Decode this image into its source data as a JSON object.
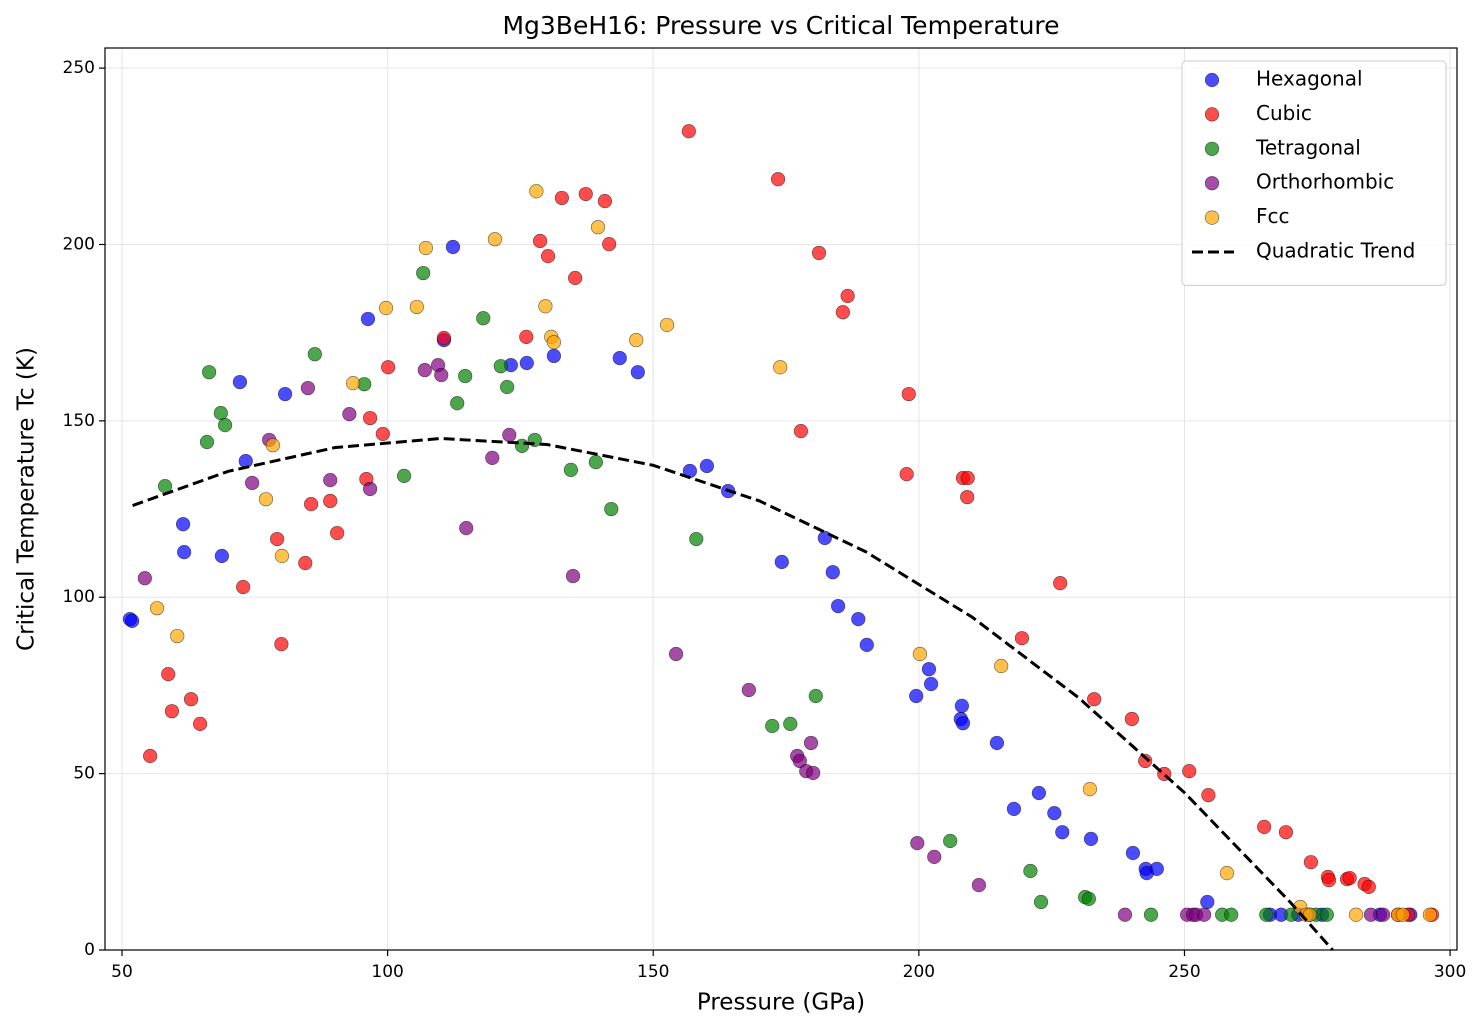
{
  "chart_data": {
    "type": "scatter",
    "title": "Mg3BeH16: Pressure vs Critical Temperature",
    "x_label": "Pressure (GPa)",
    "y_label": "Critical Temperature Tc (K)",
    "xlim": [
      46.8,
      301.3
    ],
    "ylim": [
      0,
      255.7
    ],
    "xticks": [
      50,
      100,
      150,
      200,
      250,
      300
    ],
    "yticks": [
      0,
      50,
      100,
      150,
      200,
      250
    ],
    "grid": true,
    "legend": "upper right",
    "series": [
      {
        "name": "Hexagonal",
        "type": "scatter",
        "color": "#0000ff",
        "x": [
          51.5,
          51.9,
          61.5,
          61.7,
          68.8,
          72.2,
          73.3,
          80.7,
          96.3,
          110.6,
          112.3,
          123.2,
          126.2,
          131.3,
          143.7,
          147.1,
          156.9,
          160.1,
          164.1,
          174.2,
          182.3,
          183.8,
          184.8,
          188.6,
          190.2,
          199.5,
          201.9,
          202.3,
          208.1,
          207.9,
          208.3,
          214.7,
          217.9,
          222.6,
          225.5,
          227.0,
          232.4,
          240.3,
          242.7,
          242.9,
          244.8,
          254.3,
          266.1,
          268.2,
          271.4,
          273.6,
          275.9,
          286.8,
          292.5
        ],
        "y": [
          93.8,
          93.3,
          120.7,
          112.8,
          111.7,
          161.0,
          138.6,
          157.6,
          178.9,
          172.9,
          199.3,
          165.8,
          166.4,
          168.4,
          167.8,
          163.8,
          135.8,
          137.2,
          130.1,
          110.0,
          116.8,
          107.1,
          97.5,
          93.8,
          86.5,
          72.0,
          79.6,
          75.4,
          69.2,
          65.5,
          64.3,
          58.7,
          40.0,
          44.5,
          38.8,
          33.4,
          31.5,
          27.5,
          23.0,
          21.8,
          23.0,
          13.6,
          10,
          10,
          10,
          10,
          10,
          10,
          10
        ]
      },
      {
        "name": "Cubic",
        "type": "scatter",
        "color": "#ff0000",
        "x": [
          55.3,
          58.7,
          59.4,
          63.0,
          64.7,
          72.8,
          79.2,
          80.0,
          84.5,
          85.6,
          89.2,
          90.5,
          96.0,
          96.7,
          99.1,
          100.1,
          110.6,
          126.1,
          128.7,
          130.2,
          132.8,
          135.3,
          137.3,
          140.9,
          141.7,
          156.7,
          173.5,
          177.8,
          181.2,
          185.7,
          186.6,
          197.7,
          198.1,
          208.3,
          209.2,
          209.1,
          219.4,
          226.6,
          233.0,
          240.1,
          242.6,
          246.2,
          250.9,
          254.5,
          265.0,
          269.1,
          273.8,
          277.0,
          277.2,
          280.6,
          281.1,
          283.9,
          284.7,
          290.2,
          292.1,
          296.6
        ],
        "y": [
          55.0,
          78.2,
          67.7,
          71.1,
          64.1,
          102.9,
          116.5,
          86.7,
          109.7,
          126.4,
          127.3,
          118.2,
          133.5,
          150.8,
          146.3,
          165.2,
          173.5,
          173.8,
          201.0,
          196.7,
          213.2,
          190.5,
          214.3,
          212.3,
          200.1,
          232.1,
          218.5,
          147.1,
          197.6,
          180.8,
          185.4,
          134.9,
          157.6,
          133.8,
          133.8,
          128.4,
          88.4,
          104.0,
          71.1,
          65.5,
          53.6,
          49.9,
          50.7,
          43.9,
          34.9,
          33.4,
          24.9,
          20.7,
          19.8,
          20.1,
          20.4,
          18.7,
          17.9,
          10,
          10,
          10
        ]
      },
      {
        "name": "Tetragonal",
        "type": "scatter",
        "color": "#008000",
        "x": [
          58.1,
          66.0,
          66.4,
          68.6,
          69.4,
          86.3,
          95.6,
          103.1,
          106.7,
          113.1,
          114.6,
          118.0,
          121.3,
          122.5,
          125.3,
          127.7,
          134.5,
          139.2,
          142.1,
          158.1,
          172.4,
          175.8,
          180.6,
          205.9,
          221.0,
          223.0,
          231.3,
          232.0,
          243.7,
          257.1,
          258.8,
          265.4,
          270.1,
          274.8,
          276.8
        ],
        "y": [
          131.5,
          144.0,
          163.8,
          152.2,
          148.8,
          168.9,
          160.4,
          134.4,
          191.9,
          155.0,
          162.7,
          179.1,
          165.5,
          159.6,
          142.9,
          144.6,
          136.1,
          138.3,
          125.0,
          116.5,
          63.5,
          64.1,
          72.0,
          30.9,
          22.4,
          13.6,
          15.0,
          14.5,
          10,
          10,
          10,
          10,
          10,
          10,
          10
        ]
      },
      {
        "name": "Orthorhombic",
        "type": "scatter",
        "color": "#800080",
        "x": [
          54.3,
          74.5,
          77.7,
          85.0,
          89.2,
          92.8,
          96.7,
          107.0,
          109.5,
          110.1,
          114.8,
          119.7,
          122.9,
          134.9,
          154.3,
          168.0,
          177.1,
          177.6,
          178.8,
          179.7,
          180.1,
          199.7,
          202.9,
          211.3,
          238.8,
          250.5,
          251.6,
          252.2,
          253.7,
          285.1,
          287.4
        ],
        "y": [
          105.4,
          132.4,
          144.6,
          159.3,
          133.2,
          151.9,
          130.7,
          164.4,
          165.8,
          163.0,
          119.6,
          139.5,
          146.0,
          106.0,
          83.9,
          73.7,
          55.0,
          53.6,
          50.7,
          58.7,
          50.2,
          30.3,
          26.4,
          18.4,
          10,
          10,
          10,
          10,
          10,
          10,
          10
        ]
      },
      {
        "name": "Fcc",
        "type": "scatter",
        "color": "#ffa500",
        "x": [
          56.6,
          60.4,
          77.1,
          78.4,
          80.1,
          93.5,
          99.7,
          105.5,
          107.2,
          120.2,
          128.0,
          129.7,
          130.8,
          131.3,
          139.6,
          146.8,
          152.6,
          173.9,
          200.2,
          215.5,
          232.2,
          258.0,
          271.8,
          272.9,
          273.6,
          282.3,
          290.2,
          291.1,
          296.2
        ],
        "y": [
          96.9,
          89.0,
          127.8,
          143.1,
          111.7,
          160.7,
          182.0,
          182.3,
          199.0,
          201.5,
          215.1,
          182.5,
          173.8,
          172.3,
          204.9,
          172.9,
          177.2,
          165.2,
          83.9,
          80.5,
          45.6,
          21.8,
          12.2,
          10,
          10,
          10,
          10,
          10,
          10
        ]
      },
      {
        "name": "Quadratic Trend",
        "type": "line",
        "color": "#000000",
        "line_style": "dashed",
        "x": [
          52,
          70,
          90,
          110,
          130,
          150,
          170,
          190,
          210,
          230,
          250,
          270,
          277.9
        ],
        "y": [
          126.0,
          135.7,
          142.4,
          145.0,
          143.3,
          137.4,
          127.3,
          112.9,
          94.4,
          71.6,
          44.6,
          13.4,
          0
        ]
      }
    ]
  }
}
